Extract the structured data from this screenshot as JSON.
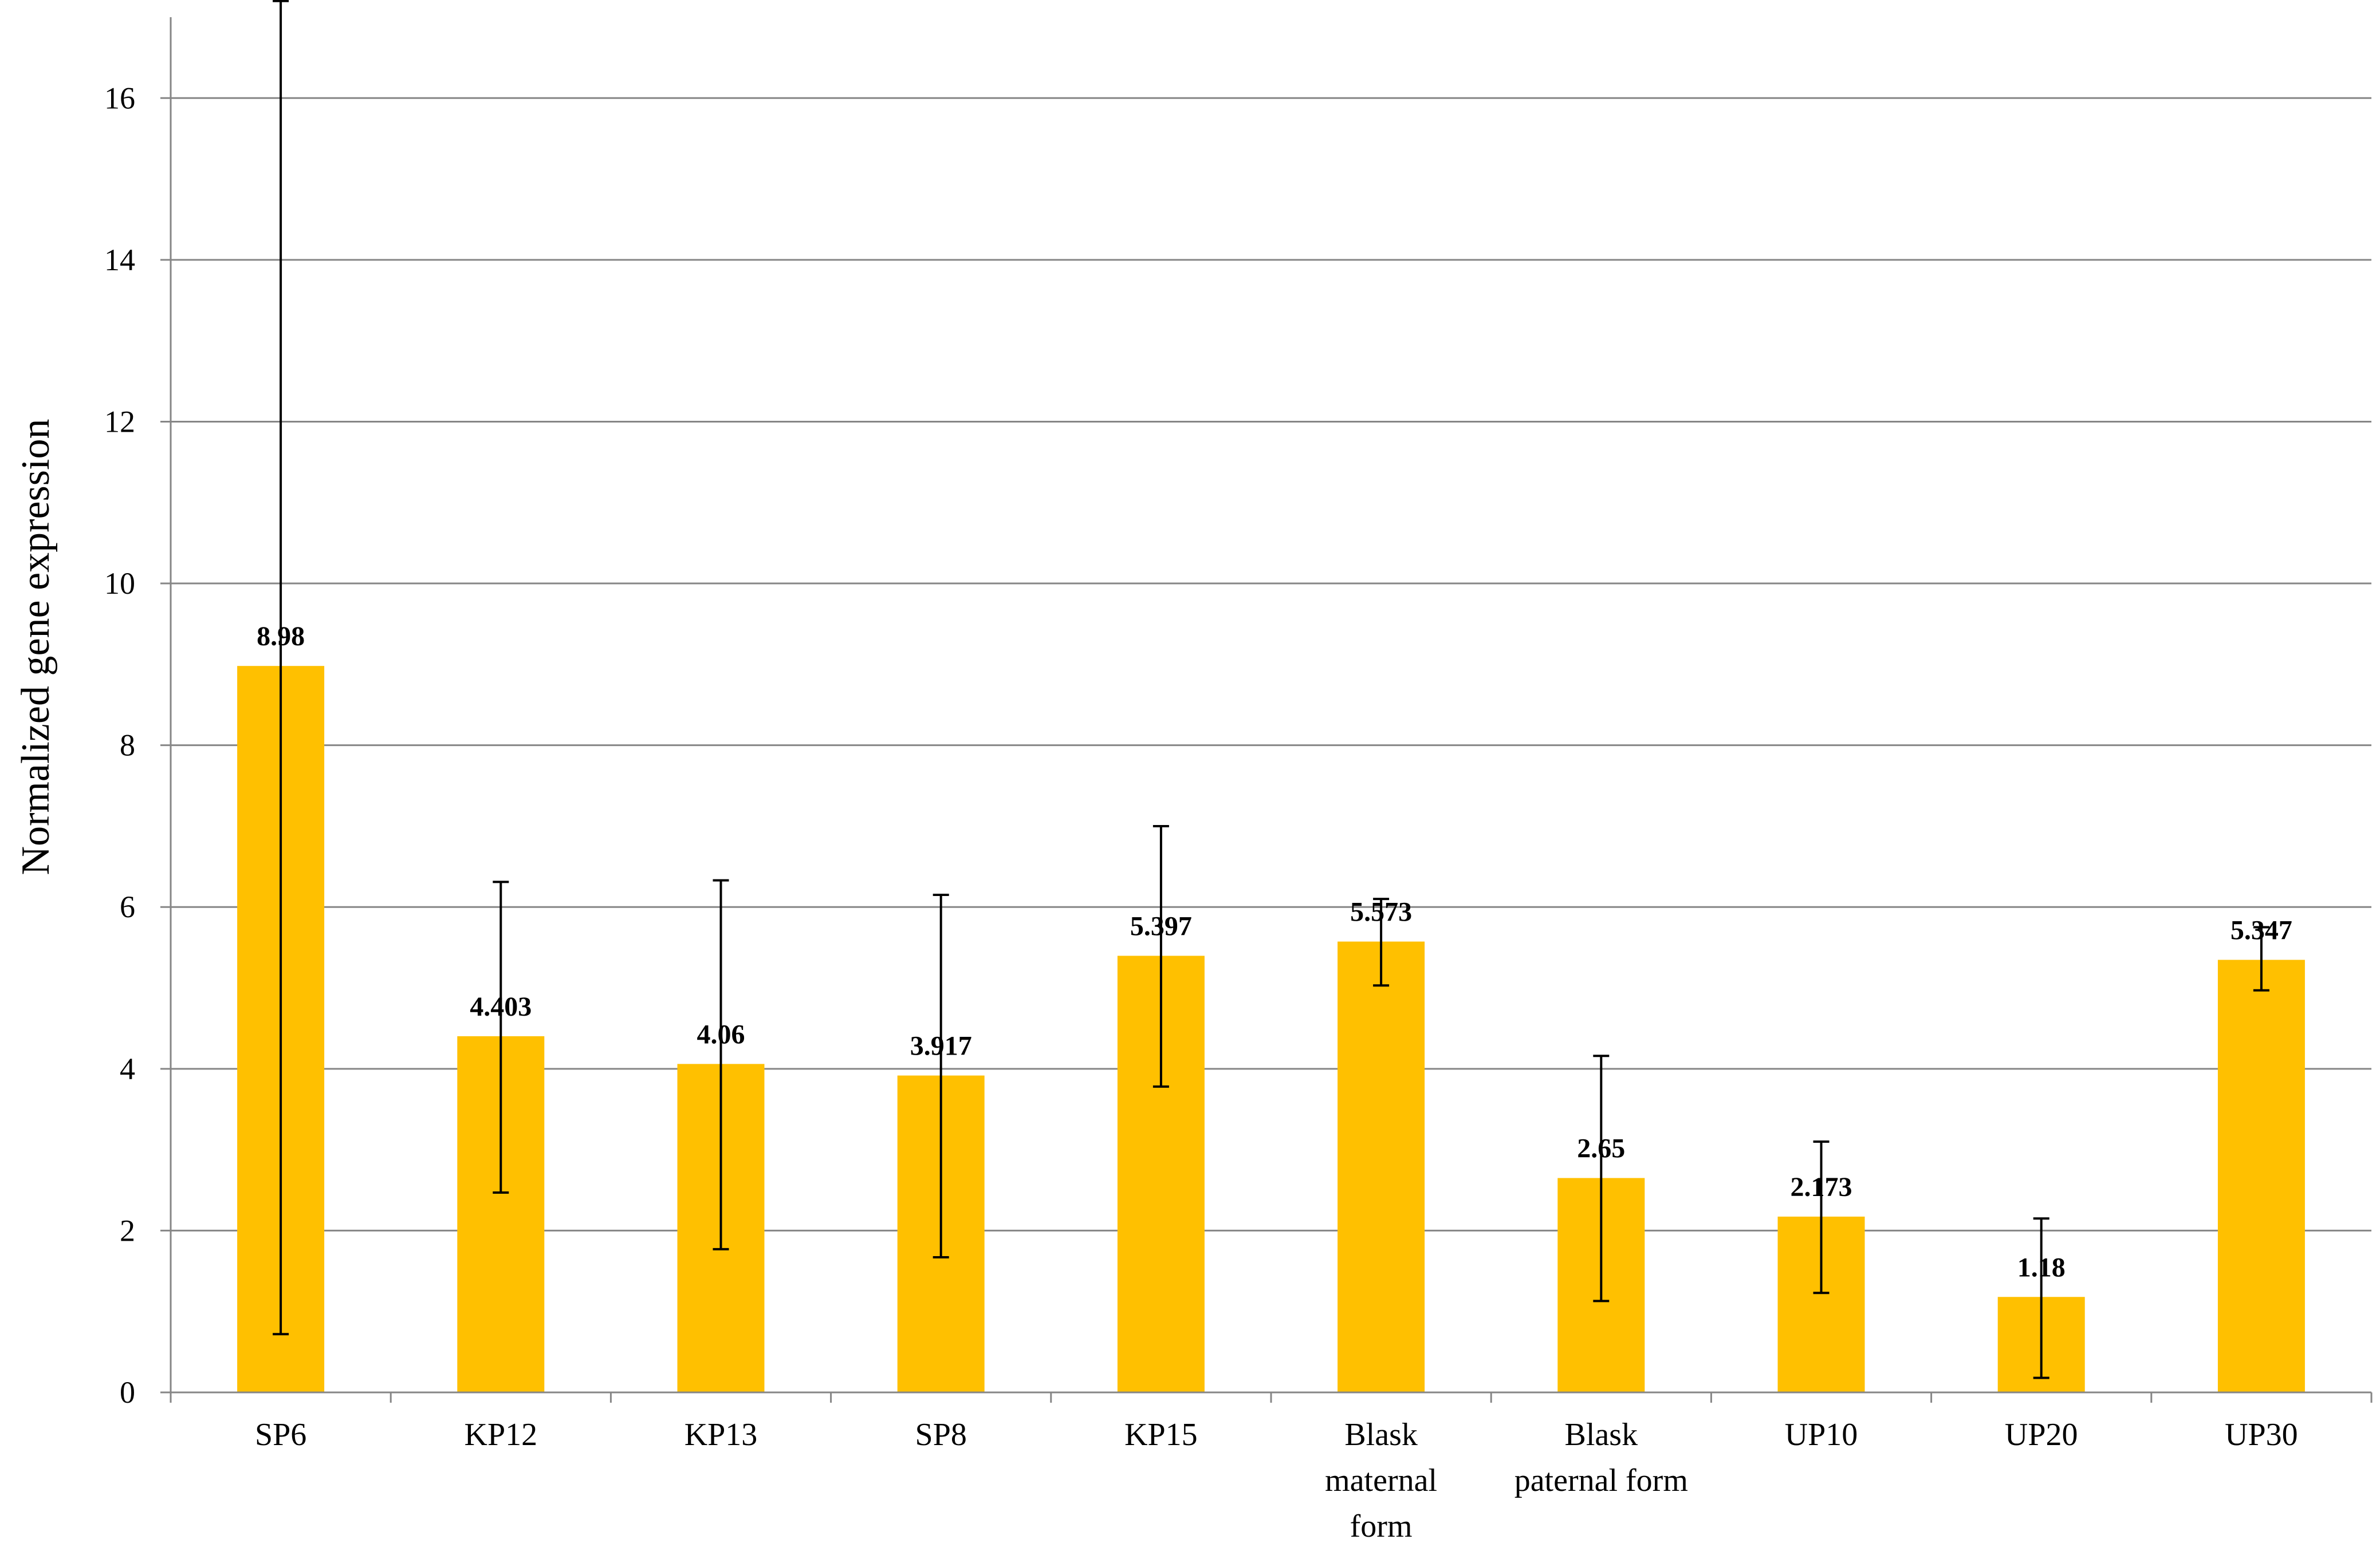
{
  "chart_data": {
    "type": "bar",
    "title": "",
    "xlabel": "",
    "ylabel": "Normalized  gene expression",
    "ylim": [
      0,
      17
    ],
    "yticks": [
      0,
      2,
      4,
      6,
      8,
      10,
      12,
      14,
      16
    ],
    "grid": true,
    "legend": "none",
    "bar_color": "#FFC000",
    "categories": [
      [
        "SP6"
      ],
      [
        "KP12"
      ],
      [
        "KP13"
      ],
      [
        "SP8"
      ],
      [
        "KP15"
      ],
      [
        "Blask",
        "maternal",
        "form"
      ],
      [
        "Blask",
        "paternal form"
      ],
      [
        "UP10"
      ],
      [
        "UP20"
      ],
      [
        "UP30"
      ]
    ],
    "values": [
      8.98,
      4.403,
      4.06,
      3.917,
      5.397,
      5.573,
      2.65,
      2.173,
      1.18,
      5.347
    ],
    "value_labels": [
      "8.98",
      "4.403",
      "4.06",
      "3.917",
      "5.397",
      "5.573",
      "2.65",
      "2.173",
      "1.18",
      "5.347"
    ],
    "error_low": [
      0.72,
      2.47,
      1.77,
      1.67,
      3.78,
      5.03,
      1.13,
      1.23,
      0.18,
      4.97
    ],
    "error_high": [
      17.2,
      6.31,
      6.33,
      6.15,
      7.0,
      6.1,
      4.16,
      3.1,
      2.15,
      5.75
    ]
  }
}
